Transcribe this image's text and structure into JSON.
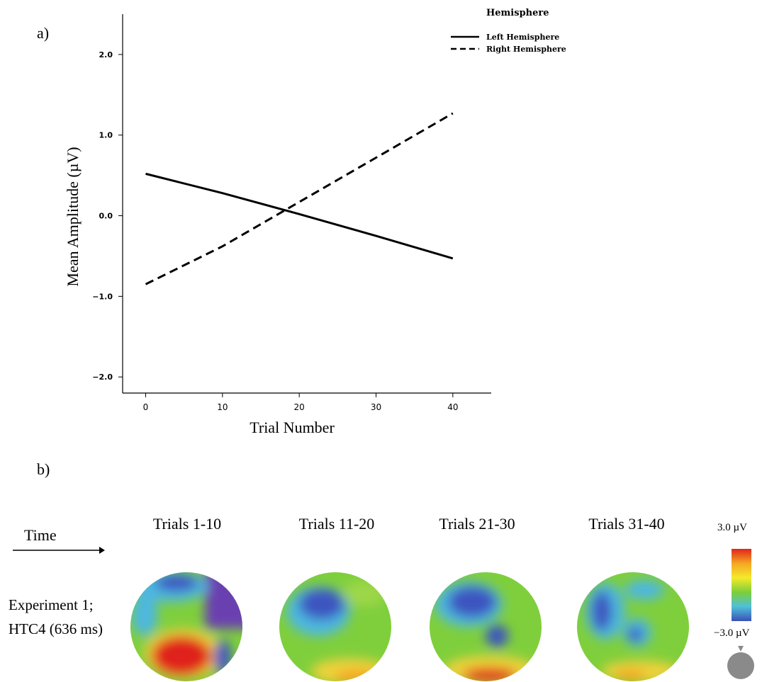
{
  "panel_a_label": "a)",
  "panel_b_label": "b)",
  "chart_data": {
    "type": "line",
    "xlabel": "Trial Number",
    "ylabel": "Mean Amplitude (µV)",
    "xlim": [
      -3,
      45
    ],
    "ylim": [
      -2.2,
      2.5
    ],
    "xticks": [
      0,
      10,
      20,
      30,
      40
    ],
    "yticks": [
      -2.0,
      -1.0,
      0.0,
      1.0,
      2.0
    ],
    "ytick_labels": [
      "−2.0",
      "−1.0",
      "0.0",
      "1.0",
      "2.0"
    ],
    "grid": false,
    "legend": {
      "title": "Hemisphere",
      "placement": "top-right"
    },
    "series": [
      {
        "name": "Left Hemisphere",
        "style": "solid",
        "x": [
          0,
          10,
          20,
          30,
          40
        ],
        "y": [
          0.52,
          0.28,
          0.02,
          -0.25,
          -0.53
        ]
      },
      {
        "name": "Right Hemisphere",
        "style": "dashed",
        "x": [
          0,
          10,
          20,
          30,
          40
        ],
        "y": [
          -0.85,
          -0.38,
          0.17,
          0.72,
          1.27
        ]
      }
    ]
  },
  "topomaps": {
    "time_label": "Time",
    "row_label_line1": "Experiment 1;",
    "row_label_line2": "HTC4 (636 ms)",
    "maps": [
      {
        "label": "Trials 1-10"
      },
      {
        "label": "Trials 11-20"
      },
      {
        "label": "Trials 21-30"
      },
      {
        "label": "Trials 31-40"
      }
    ],
    "colorbar_max": "3.0 µV",
    "colorbar_min": "−3.0 µV",
    "colorbar_colors": [
      "#e0241b",
      "#f5a623",
      "#f4ea2a",
      "#7ccf3a",
      "#4fc0d8",
      "#3b4fb8"
    ]
  }
}
